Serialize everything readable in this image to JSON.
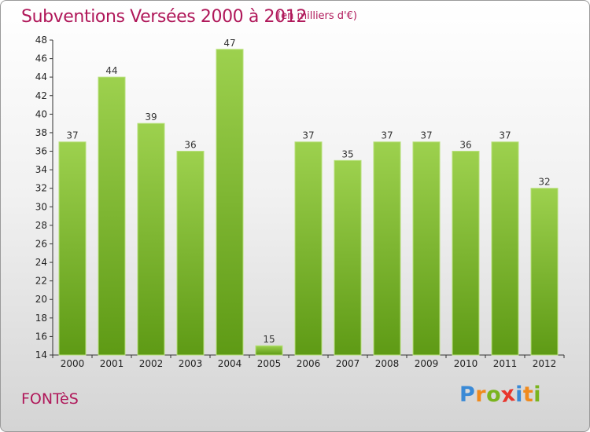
{
  "header": {
    "title": "Subventions Versées 2000 à 2012",
    "subtitle": "(en milliers d'€)"
  },
  "footer": {
    "place": "FONTèS",
    "logo": {
      "letters": [
        "P",
        "r",
        "o",
        "x",
        "i",
        "t",
        "i"
      ],
      "colors": [
        "#3a8ad6",
        "#f08a1c",
        "#7ab41e",
        "#e8352c",
        "#3a8ad6",
        "#f08a1c",
        "#7ab41e"
      ]
    }
  },
  "colors": {
    "accent": "#b0185a",
    "bar_top": "#9dd14e",
    "bar_bottom": "#5e9a15",
    "bar_edge": "#b7e07a"
  },
  "chart_data": {
    "type": "bar",
    "title": "Subventions Versées 2000 à 2012",
    "subtitle": "(en milliers d'€)",
    "xlabel": "",
    "ylabel": "",
    "categories": [
      "2000",
      "2001",
      "2002",
      "2003",
      "2004",
      "2005",
      "2006",
      "2007",
      "2008",
      "2009",
      "2010",
      "2011",
      "2012"
    ],
    "values": [
      37,
      44,
      39,
      36,
      47,
      15,
      37,
      35,
      37,
      37,
      36,
      37,
      32
    ],
    "ylim": [
      14,
      48
    ],
    "yticks": [
      14,
      16,
      18,
      20,
      22,
      24,
      26,
      28,
      30,
      32,
      34,
      36,
      38,
      40,
      42,
      44,
      46,
      48
    ],
    "grid": false,
    "legend": "none"
  }
}
